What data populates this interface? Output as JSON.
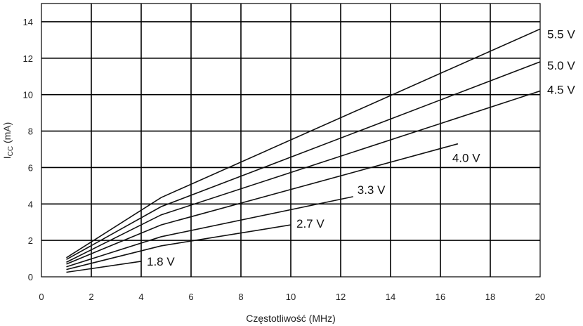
{
  "chart_data": {
    "type": "line",
    "title": "",
    "xlabel": "Częstotliwość (MHz)",
    "ylabel_main": "I",
    "ylabel_sub": "CC",
    "ylabel_rest": " (mA)",
    "xlim": [
      0,
      20
    ],
    "ylim": [
      0,
      15
    ],
    "xticks": [
      0,
      2,
      4,
      6,
      8,
      10,
      12,
      14,
      16,
      18,
      20
    ],
    "yticks": [
      0,
      2,
      4,
      6,
      8,
      10,
      12,
      14
    ],
    "grid": true,
    "legend": "none",
    "series": [
      {
        "name": "1.8 V",
        "x": [
          1,
          4
        ],
        "y": [
          0.25,
          0.85
        ]
      },
      {
        "name": "2.7 V",
        "x": [
          1,
          4.8,
          10
        ],
        "y": [
          0.4,
          1.7,
          2.85
        ]
      },
      {
        "name": "3.3 V",
        "x": [
          1,
          4.8,
          12.5
        ],
        "y": [
          0.55,
          2.2,
          4.4
        ]
      },
      {
        "name": "4.0 V",
        "x": [
          1,
          4.8,
          16.7
        ],
        "y": [
          0.7,
          2.85,
          7.3
        ]
      },
      {
        "name": "4.5 V",
        "x": [
          1,
          4.8,
          20
        ],
        "y": [
          0.8,
          3.4,
          10.2
        ]
      },
      {
        "name": "5.0 V",
        "x": [
          1,
          4.8,
          20
        ],
        "y": [
          0.95,
          3.85,
          11.8
        ]
      },
      {
        "name": "5.5 V",
        "x": [
          1,
          4.8,
          20
        ],
        "y": [
          1.05,
          4.35,
          13.6
        ]
      }
    ]
  }
}
